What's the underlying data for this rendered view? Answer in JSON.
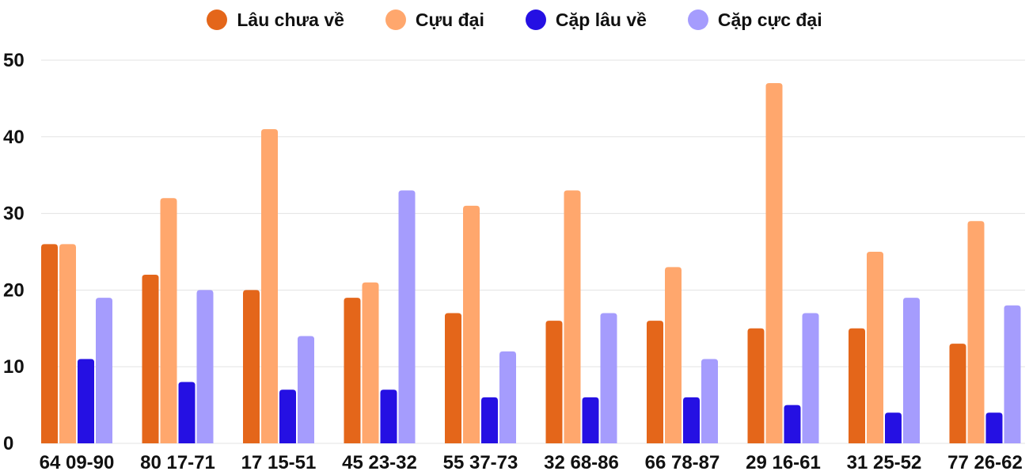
{
  "chart_data": {
    "type": "bar",
    "title": "",
    "xlabel": "",
    "ylabel": "",
    "ylim": [
      0,
      50
    ],
    "yticks": [
      0,
      10,
      20,
      30,
      40,
      50
    ],
    "grid": true,
    "legend_position": "top-center",
    "categories": [
      "64 09-90",
      "80 17-71",
      "17 15-51",
      "45 23-32",
      "55 37-73",
      "32 68-86",
      "66 78-87",
      "29 16-61",
      "31 25-52",
      "77 26-62"
    ],
    "series": [
      {
        "name": "Lâu chưa về",
        "color": "#e4661a",
        "values": [
          26,
          22,
          20,
          19,
          17,
          16,
          16,
          15,
          15,
          13
        ]
      },
      {
        "name": "Cựu đại",
        "color": "#ffa76d",
        "values": [
          26,
          32,
          41,
          21,
          31,
          33,
          23,
          47,
          25,
          29
        ]
      },
      {
        "name": "Cặp lâu về",
        "color": "#2510e3",
        "values": [
          11,
          8,
          7,
          7,
          6,
          6,
          6,
          5,
          4,
          4
        ]
      },
      {
        "name": "Cặp cực đại",
        "color": "#a59cfd",
        "values": [
          19,
          20,
          14,
          33,
          12,
          17,
          11,
          17,
          19,
          18
        ]
      }
    ]
  }
}
